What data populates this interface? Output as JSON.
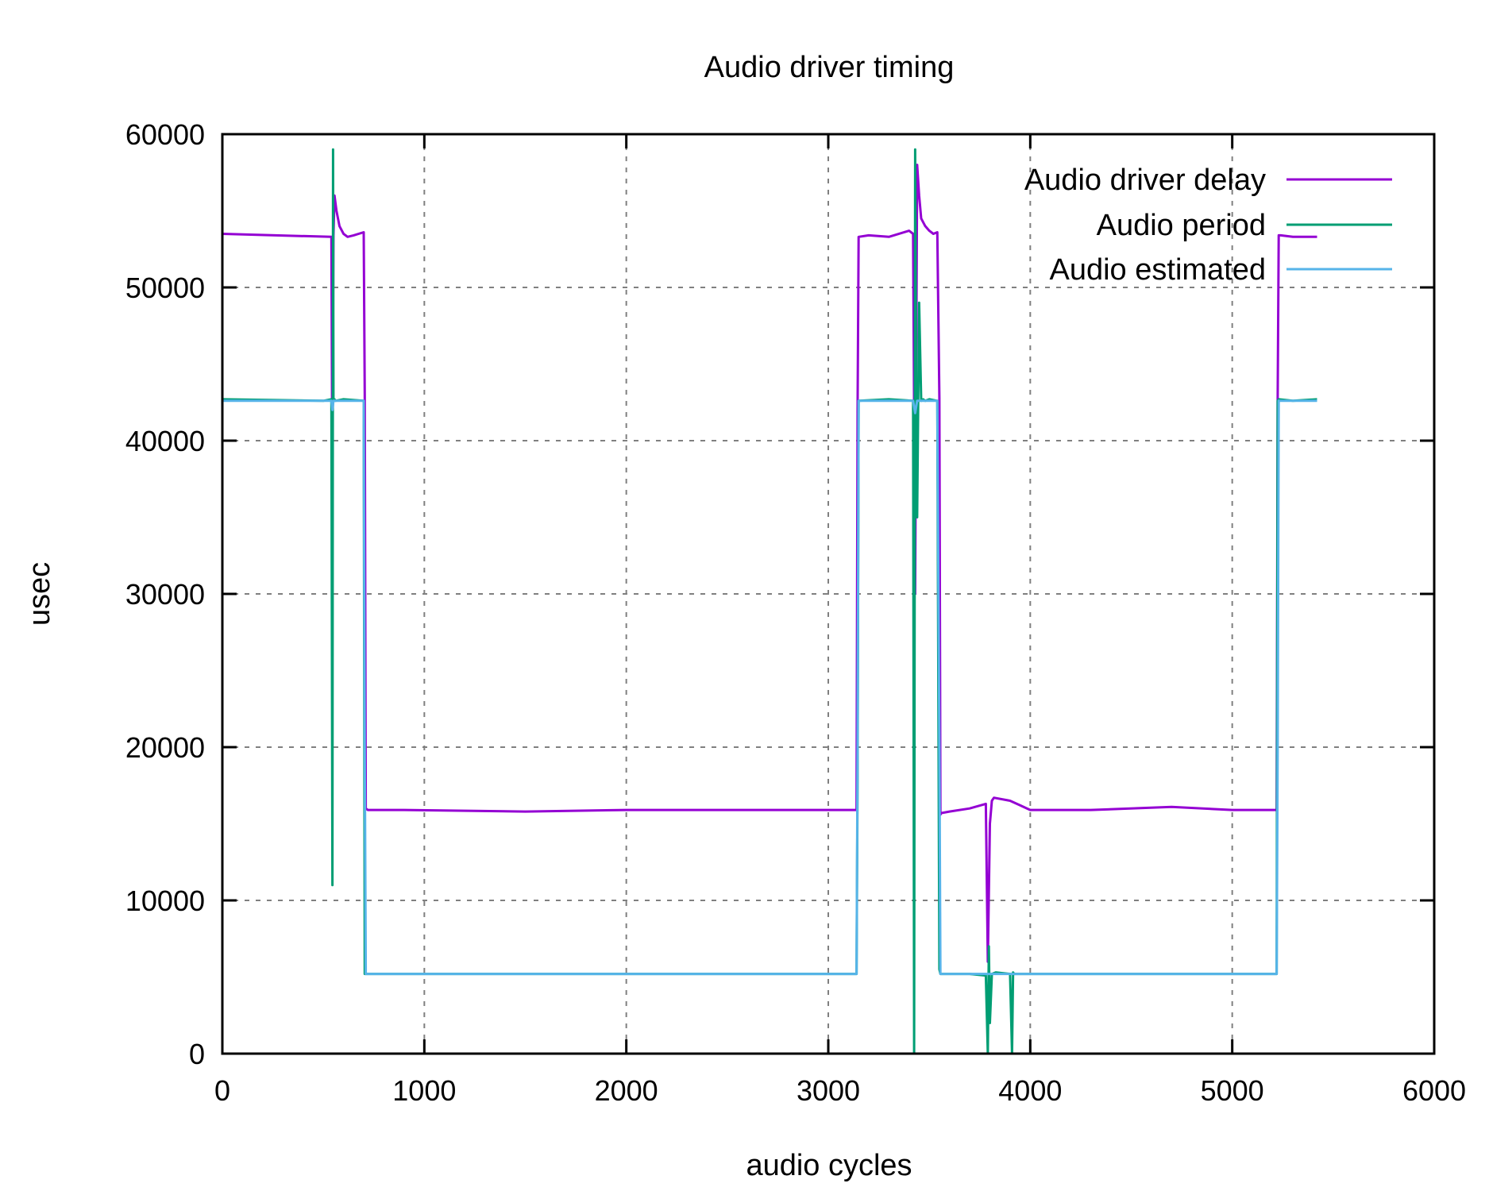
{
  "chart_data": {
    "type": "line",
    "title": "Audio driver timing",
    "xlabel": "audio cycles",
    "ylabel": "usec",
    "xlim": [
      0,
      6000
    ],
    "ylim": [
      0,
      60000
    ],
    "x_ticks": [
      "0",
      "1000",
      "2000",
      "3000",
      "4000",
      "5000",
      "6000"
    ],
    "y_ticks": [
      "0",
      "10000",
      "20000",
      "30000",
      "40000",
      "50000",
      "60000"
    ],
    "grid": true,
    "legend_position": "top-right",
    "legend": [
      "Audio driver delay",
      "Audio period",
      "Audio estimated"
    ],
    "colors": {
      "Audio driver delay": "#9400d3",
      "Audio period": "#009e73",
      "Audio estimated": "#56b4e9"
    },
    "series": [
      {
        "name": "Audio driver delay",
        "x": [
          0,
          540,
          545,
          550,
          555,
          565,
          580,
          600,
          620,
          650,
          700,
          705,
          710,
          720,
          900,
          1500,
          2000,
          2500,
          3000,
          3140,
          3145,
          3150,
          3200,
          3300,
          3400,
          3420,
          3430,
          3440,
          3450,
          3460,
          3480,
          3500,
          3520,
          3540,
          3550,
          3555,
          3560,
          3600,
          3700,
          3780,
          3790,
          3800,
          3810,
          3820,
          3900,
          3950,
          4000,
          4300,
          4700,
          5000,
          5220,
          5225,
          5230,
          5240,
          5300,
          5420
        ],
        "y": [
          53500,
          53300,
          36500,
          53400,
          56000,
          55000,
          54000,
          53500,
          53300,
          53400,
          53600,
          43000,
          16000,
          15900,
          15900,
          15800,
          15900,
          15900,
          15900,
          15900,
          42000,
          53300,
          53400,
          53300,
          53700,
          53500,
          30000,
          58000,
          56000,
          54500,
          54000,
          53700,
          53500,
          53600,
          42800,
          15600,
          15700,
          15800,
          16000,
          16300,
          6000,
          15000,
          16500,
          16700,
          16500,
          16200,
          15900,
          15900,
          16100,
          15900,
          15900,
          42800,
          53400,
          53400,
          53300,
          53300
        ]
      },
      {
        "name": "Audio period",
        "x": [
          0,
          500,
          540,
          545,
          548,
          550,
          555,
          560,
          600,
          700,
          705,
          710,
          1000,
          2000,
          3000,
          3140,
          3145,
          3150,
          3300,
          3420,
          3425,
          3430,
          3435,
          3440,
          3450,
          3460,
          3470,
          3480,
          3500,
          3540,
          3550,
          3555,
          3600,
          3700,
          3780,
          3790,
          3795,
          3800,
          3810,
          3830,
          3900,
          3910,
          3915,
          3920,
          4000,
          4500,
          5000,
          5220,
          5225,
          5230,
          5300,
          5420
        ],
        "y": [
          42700,
          42600,
          42700,
          11000,
          59000,
          42600,
          42700,
          42600,
          42700,
          42600,
          5200,
          5200,
          5200,
          5200,
          5200,
          5200,
          18000,
          42600,
          42700,
          42600,
          0,
          59000,
          42600,
          35000,
          49000,
          42600,
          42700,
          42600,
          42700,
          42600,
          5500,
          5200,
          5200,
          5200,
          5100,
          0,
          7000,
          2000,
          5200,
          5300,
          5200,
          0,
          5300,
          5200,
          5200,
          5200,
          5200,
          5200,
          42600,
          42700,
          42600,
          42700
        ]
      },
      {
        "name": "Audio estimated",
        "x": [
          0,
          500,
          540,
          545,
          550,
          700,
          705,
          710,
          1000,
          2000,
          3000,
          3140,
          3145,
          3150,
          3300,
          3420,
          3430,
          3440,
          3450,
          3500,
          3540,
          3550,
          3555,
          3600,
          4000,
          4500,
          5000,
          5220,
          5225,
          5230,
          5300,
          5420
        ],
        "y": [
          42600,
          42600,
          42600,
          42000,
          42600,
          42600,
          20000,
          5200,
          5200,
          5200,
          5200,
          5200,
          20000,
          42600,
          42600,
          42600,
          41800,
          42600,
          42600,
          42600,
          42600,
          20000,
          5200,
          5200,
          5200,
          5200,
          5200,
          5200,
          20000,
          42600,
          42600,
          42600
        ]
      }
    ]
  }
}
